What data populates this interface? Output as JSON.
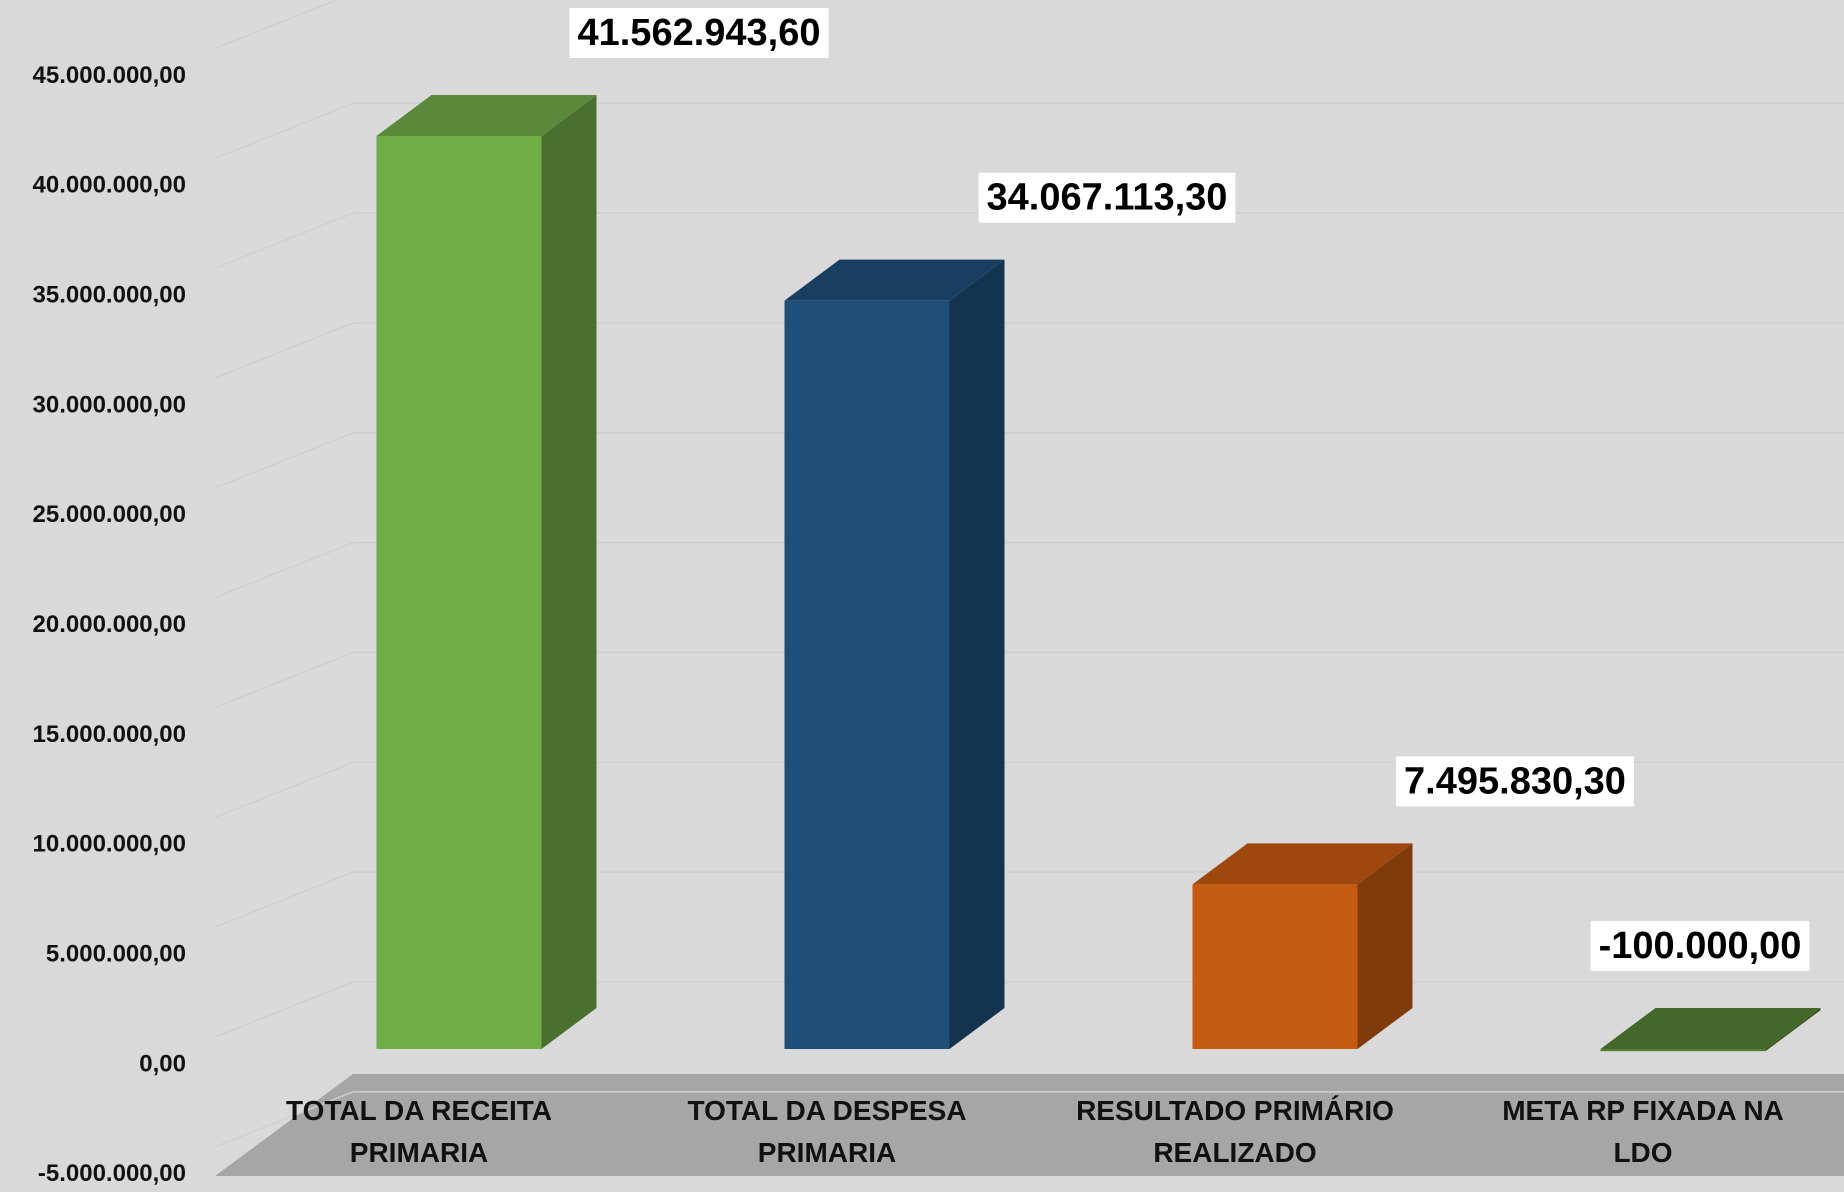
{
  "chart_data": {
    "type": "bar3d",
    "categories": [
      "TOTAL DA RECEITA PRIMARIA",
      "TOTAL DA DESPESA PRIMARIA",
      "RESULTADO PRIMÁRIO REALIZADO",
      "META RP FIXADA NA LDO"
    ],
    "values": [
      41562943.6,
      34067113.3,
      7495830.3,
      -100000.0
    ],
    "value_labels": [
      "41.562.943,60",
      "34.067.113,30",
      "7.495.830,30",
      "-100.000,00"
    ],
    "colors": [
      "#70ad47",
      "#1f4e79",
      "#c55a11",
      "#548235"
    ],
    "ylim": [
      -5000000,
      45000000
    ],
    "yticks": [
      {
        "value": -5000000,
        "label": "-5.000.000,00"
      },
      {
        "value": 0,
        "label": "0,00"
      },
      {
        "value": 5000000,
        "label": "5.000.000,00"
      },
      {
        "value": 10000000,
        "label": "10.000.000,00"
      },
      {
        "value": 15000000,
        "label": "15.000.000,00"
      },
      {
        "value": 20000000,
        "label": "20.000.000,00"
      },
      {
        "value": 25000000,
        "label": "25.000.000,00"
      },
      {
        "value": 30000000,
        "label": "30.000.000,00"
      },
      {
        "value": 35000000,
        "label": "35.000.000,00"
      },
      {
        "value": 40000000,
        "label": "40.000.000,00"
      },
      {
        "value": 45000000,
        "label": "45.000.000,00"
      }
    ],
    "grid": true
  }
}
